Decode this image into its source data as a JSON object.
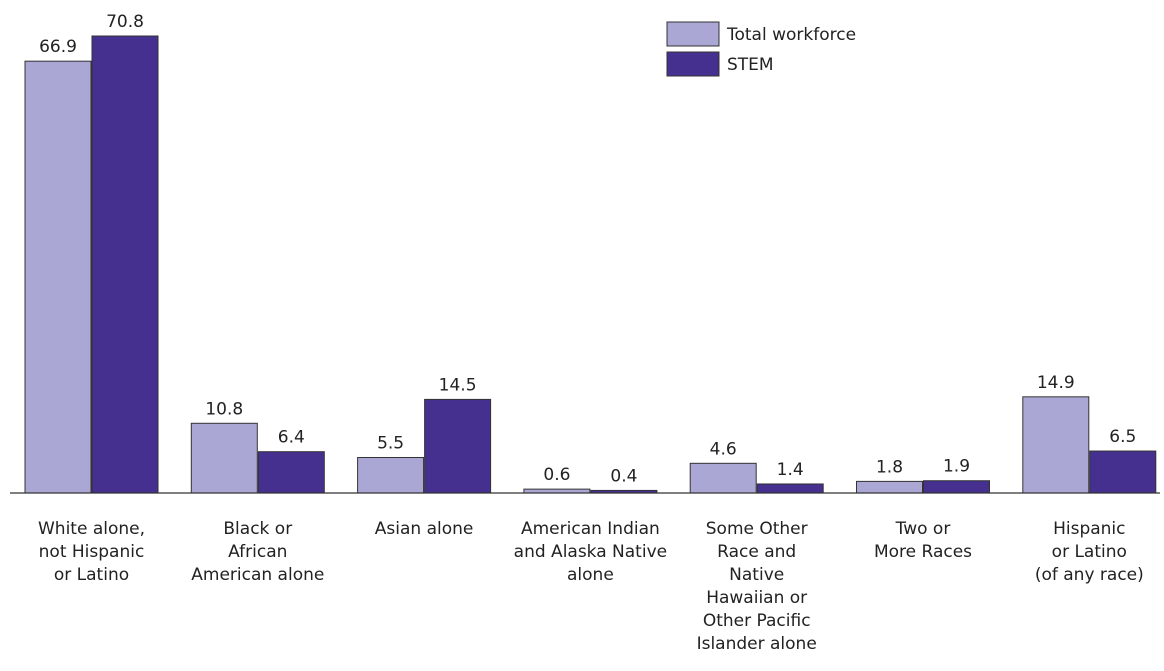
{
  "chart_data": {
    "type": "bar",
    "categories": [
      [
        "White alone,",
        "not Hispanic",
        "or Latino"
      ],
      [
        "Black or",
        "African",
        "American alone"
      ],
      [
        "Asian alone"
      ],
      [
        "American Indian",
        "and Alaska Native",
        "alone"
      ],
      [
        "Some Other",
        "Race and",
        "Native",
        "Hawaiian or",
        "Other Pacific",
        "Islander alone"
      ],
      [
        "Two or",
        "More Races"
      ],
      [
        "Hispanic",
        "or Latino",
        "(of any race)"
      ]
    ],
    "series": [
      {
        "name": "Total workforce",
        "color": "#aba7d5",
        "values": [
          66.9,
          10.8,
          5.5,
          0.6,
          4.6,
          1.8,
          14.9
        ]
      },
      {
        "name": "STEM",
        "color": "#45308f",
        "values": [
          70.8,
          6.4,
          14.5,
          0.4,
          1.4,
          1.9,
          6.5
        ]
      }
    ],
    "legend": "top-right"
  }
}
